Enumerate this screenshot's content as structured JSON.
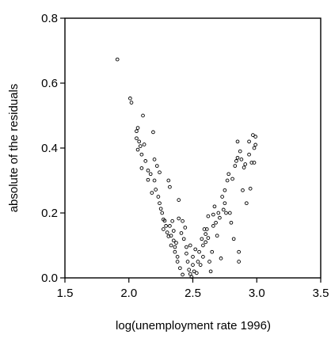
{
  "chart_data": {
    "type": "scatter",
    "title": "",
    "xlabel": "log(unemployment rate 1996)",
    "ylabel": "absolute of the residuals",
    "xlim": [
      1.5,
      3.5
    ],
    "ylim": [
      0.0,
      0.8
    ],
    "xticks": [
      "1.5",
      "2.0",
      "2.5",
      "3.0",
      "3.5"
    ],
    "yticks": [
      "0.0",
      "0.2",
      "0.4",
      "0.6",
      "0.8"
    ],
    "grid": false,
    "legend": "none",
    "marker": "open-circle",
    "series": [
      {
        "points": [
          [
            1.91,
            0.673
          ],
          [
            2.01,
            0.553
          ],
          [
            2.02,
            0.54
          ],
          [
            2.06,
            0.452
          ],
          [
            2.06,
            0.43
          ],
          [
            2.07,
            0.462
          ],
          [
            2.08,
            0.42
          ],
          [
            2.07,
            0.395
          ],
          [
            2.09,
            0.406
          ],
          [
            2.1,
            0.38
          ],
          [
            2.1,
            0.338
          ],
          [
            2.11,
            0.5
          ],
          [
            2.12,
            0.411
          ],
          [
            2.13,
            0.36
          ],
          [
            2.15,
            0.302
          ],
          [
            2.15,
            0.331
          ],
          [
            2.17,
            0.32
          ],
          [
            2.18,
            0.262
          ],
          [
            2.19,
            0.449
          ],
          [
            2.2,
            0.365
          ],
          [
            2.2,
            0.3
          ],
          [
            2.21,
            0.272
          ],
          [
            2.23,
            0.25
          ],
          [
            2.24,
            0.23
          ],
          [
            2.22,
            0.345
          ],
          [
            2.24,
            0.325
          ],
          [
            2.25,
            0.213
          ],
          [
            2.26,
            0.2
          ],
          [
            2.27,
            0.18
          ],
          [
            2.27,
            0.15
          ],
          [
            2.28,
            0.176
          ],
          [
            2.29,
            0.16
          ],
          [
            2.3,
            0.14
          ],
          [
            2.31,
            0.3
          ],
          [
            2.31,
            0.128
          ],
          [
            2.32,
            0.28
          ],
          [
            2.32,
            0.16
          ],
          [
            2.33,
            0.13
          ],
          [
            2.33,
            0.1
          ],
          [
            2.34,
            0.175
          ],
          [
            2.35,
            0.145
          ],
          [
            2.35,
            0.115
          ],
          [
            2.36,
            0.095
          ],
          [
            2.36,
            0.08
          ],
          [
            2.37,
            0.108
          ],
          [
            2.38,
            0.065
          ],
          [
            2.38,
            0.05
          ],
          [
            2.39,
            0.183
          ],
          [
            2.39,
            0.24
          ],
          [
            2.4,
            0.03
          ],
          [
            2.41,
            0.138
          ],
          [
            2.42,
            0.175
          ],
          [
            2.42,
            0.01
          ],
          [
            2.43,
            0.12
          ],
          [
            2.44,
            0.155
          ],
          [
            2.45,
            0.095
          ],
          [
            2.45,
            0.075
          ],
          [
            2.46,
            0.05
          ],
          [
            2.47,
            0.025
          ],
          [
            2.48,
            0.012
          ],
          [
            2.48,
            0.1
          ],
          [
            2.49,
            0.003
          ],
          [
            2.5,
            0.065
          ],
          [
            2.5,
            0.04
          ],
          [
            2.51,
            0.02
          ],
          [
            2.52,
            0.088
          ],
          [
            2.53,
            0.015
          ],
          [
            2.54,
            0.05
          ],
          [
            2.55,
            0.08
          ],
          [
            2.56,
            0.04
          ],
          [
            2.57,
            0.12
          ],
          [
            2.58,
            0.1
          ],
          [
            2.58,
            0.065
          ],
          [
            2.59,
            0.15
          ],
          [
            2.6,
            0.135
          ],
          [
            2.6,
            0.11
          ],
          [
            2.61,
            0.15
          ],
          [
            2.62,
            0.123
          ],
          [
            2.62,
            0.19
          ],
          [
            2.63,
            0.05
          ],
          [
            2.64,
            0.02
          ],
          [
            2.65,
            0.08
          ],
          [
            2.66,
            0.16
          ],
          [
            2.66,
            0.195
          ],
          [
            2.67,
            0.22
          ],
          [
            2.68,
            0.17
          ],
          [
            2.69,
            0.13
          ],
          [
            2.7,
            0.2
          ],
          [
            2.71,
            0.185
          ],
          [
            2.72,
            0.06
          ],
          [
            2.73,
            0.25
          ],
          [
            2.74,
            0.21
          ],
          [
            2.75,
            0.23
          ],
          [
            2.75,
            0.27
          ],
          [
            2.76,
            0.2
          ],
          [
            2.77,
            0.3
          ],
          [
            2.78,
            0.32
          ],
          [
            2.79,
            0.2
          ],
          [
            2.8,
            0.17
          ],
          [
            2.81,
            0.305
          ],
          [
            2.82,
            0.12
          ],
          [
            2.83,
            0.345
          ],
          [
            2.84,
            0.36
          ],
          [
            2.85,
            0.37
          ],
          [
            2.85,
            0.42
          ],
          [
            2.86,
            0.08
          ],
          [
            2.86,
            0.05
          ],
          [
            2.87,
            0.39
          ],
          [
            2.88,
            0.365
          ],
          [
            2.89,
            0.27
          ],
          [
            2.9,
            0.34
          ],
          [
            2.91,
            0.35
          ],
          [
            2.92,
            0.23
          ],
          [
            2.94,
            0.38
          ],
          [
            2.94,
            0.42
          ],
          [
            2.95,
            0.275
          ],
          [
            2.96,
            0.355
          ],
          [
            2.97,
            0.44
          ],
          [
            2.98,
            0.4
          ],
          [
            2.98,
            0.355
          ],
          [
            2.99,
            0.41
          ],
          [
            2.99,
            0.435
          ]
        ]
      }
    ]
  }
}
